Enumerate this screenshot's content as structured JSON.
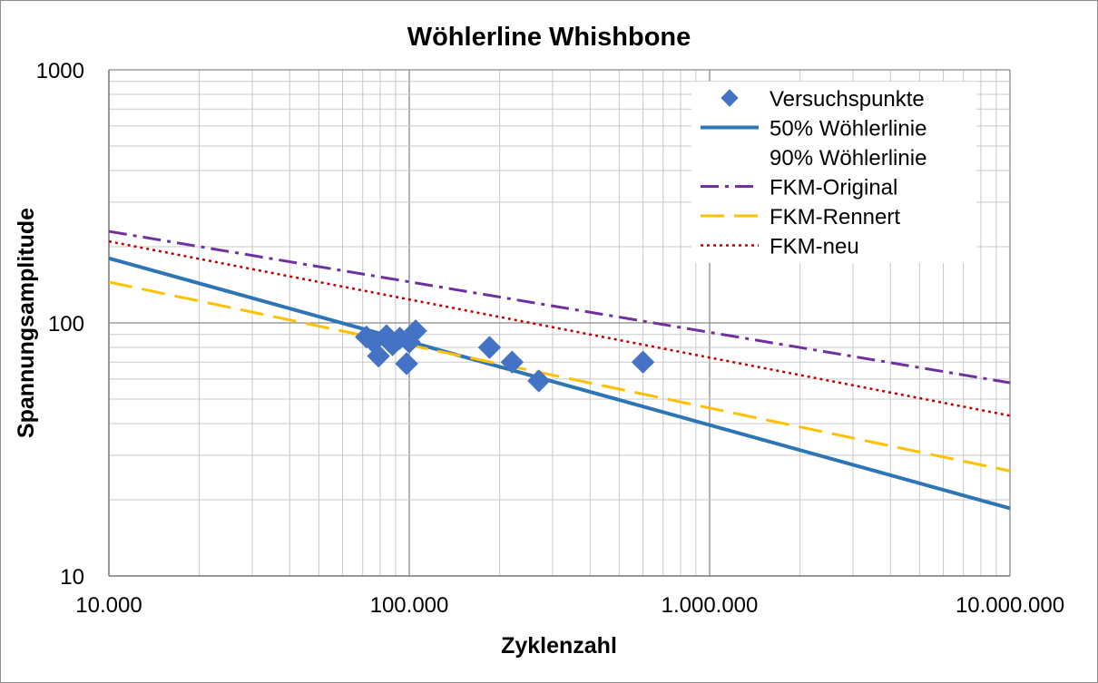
{
  "chart_data": {
    "type": "scatter",
    "title": "Wöhlerline Whishbone",
    "xlabel": "Zyklenzahl",
    "ylabel": "Spannungsamplitude",
    "xscale": "log",
    "yscale": "log",
    "xlim": [
      10000,
      10000000
    ],
    "ylim": [
      10,
      1000
    ],
    "x_tick_values": [
      10000,
      100000,
      1000000,
      10000000
    ],
    "x_tick_labels": [
      "10.000",
      "100.000",
      "1.000.000",
      "10.000.000"
    ],
    "y_tick_values": [
      10,
      100,
      1000
    ],
    "y_tick_labels": [
      "10",
      "100",
      "1000"
    ],
    "grid": true,
    "legend_position": "top-right",
    "series": [
      {
        "name": "Versuchspunkte",
        "kind": "markers",
        "marker": "diamond",
        "color": "#4472C4",
        "points": [
          [
            72000,
            88
          ],
          [
            76000,
            84
          ],
          [
            79000,
            74
          ],
          [
            84000,
            89
          ],
          [
            88000,
            82
          ],
          [
            93000,
            87
          ],
          [
            98000,
            69
          ],
          [
            100000,
            84
          ],
          [
            105000,
            93
          ],
          [
            185000,
            80
          ],
          [
            220000,
            70
          ],
          [
            270000,
            59
          ],
          [
            600000,
            70
          ]
        ]
      },
      {
        "name": "50% Wöhlerlinie",
        "kind": "line",
        "style": "solid",
        "color": "#2E75B6",
        "points": [
          [
            10000,
            180
          ],
          [
            10000000,
            18.5
          ]
        ]
      },
      {
        "name": "90% Wöhlerlinie",
        "kind": "line",
        "style": "none",
        "color": "#FFFFFF",
        "points": []
      },
      {
        "name": "FKM-Original",
        "kind": "line",
        "style": "dashdot",
        "color": "#7030A0",
        "points": [
          [
            10000,
            230
          ],
          [
            10000000,
            58
          ]
        ]
      },
      {
        "name": "FKM-Rennert",
        "kind": "line",
        "style": "dashed",
        "color": "#FFC000",
        "points": [
          [
            10000,
            145
          ],
          [
            10000000,
            26
          ]
        ]
      },
      {
        "name": "FKM-neu",
        "kind": "line",
        "style": "dotted",
        "color": "#C00000",
        "points": [
          [
            10000,
            210
          ],
          [
            10000000,
            43
          ]
        ]
      }
    ]
  }
}
